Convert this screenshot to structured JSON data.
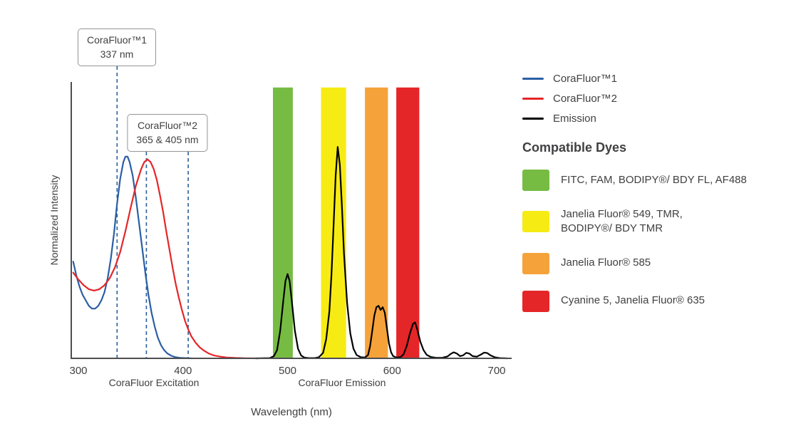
{
  "figure": {
    "xlabel": "Wavelength (nm)",
    "ylabel": "Normalized Intensity",
    "section_labels": {
      "excitation": "CoraFluor Excitation",
      "emission": "CoraFluor Emission"
    }
  },
  "callouts": [
    {
      "line1": "CoraFluor™1",
      "line2": "337 nm"
    },
    {
      "line1": "CoraFluor™2",
      "line2": "365 & 405 nm"
    }
  ],
  "legend": {
    "items": [
      {
        "label": "CoraFluor™1",
        "color": "#2b5fa5"
      },
      {
        "label": "CoraFluor™2",
        "color": "#e52628"
      },
      {
        "label": "Emission",
        "color": "#000000"
      }
    ]
  },
  "compatible_dyes": {
    "heading": "Compatible Dyes",
    "items": [
      {
        "color": "#76bc43",
        "label": "FITC, FAM, BODIPY®/ BDY FL, AF488"
      },
      {
        "color": "#f7eb14",
        "label": "Janelia Fluor® 549, TMR,\nBODIPY®/ BDY TMR"
      },
      {
        "color": "#f5a23a",
        "label": "Janelia Fluor® 585"
      },
      {
        "color": "#e52628",
        "label": "Cyanine 5, Janelia Fluor® 635"
      }
    ]
  },
  "chart_data": {
    "type": "line",
    "title": "CoraFluor excitation and emission spectra with filter bands",
    "xlabel": "Wavelength (nm)",
    "ylabel": "Normalized Intensity",
    "xlim": [
      293,
      715
    ],
    "ylim": [
      0,
      1
    ],
    "grid": false,
    "legend_position": "right",
    "x_ticks": [
      300,
      400,
      500,
      600,
      700
    ],
    "marker_color": "#2a5f9e",
    "excitation_markers_nm": [
      337,
      365,
      405
    ],
    "filter_bands": [
      {
        "name": "green",
        "color": "#76bc43",
        "range_nm": [
          486,
          505
        ],
        "dyes": "FITC, FAM, BODIPY®/ BDY FL, AF488"
      },
      {
        "name": "yellow",
        "color": "#f7eb14",
        "range_nm": [
          532,
          556
        ],
        "dyes": "Janelia Fluor® 549, TMR, BODIPY®/ BDY TMR"
      },
      {
        "name": "orange",
        "color": "#f5a23a",
        "range_nm": [
          574,
          596
        ],
        "dyes": "Janelia Fluor® 585"
      },
      {
        "name": "red",
        "color": "#e52628",
        "range_nm": [
          604,
          626
        ],
        "dyes": "Cyanine 5, Janelia Fluor® 635"
      }
    ],
    "series": [
      {
        "name": "CoraFluor™1",
        "role": "excitation-corafluor1",
        "color": "#2b5fa5",
        "points": [
          [
            295,
            0.35
          ],
          [
            298,
            0.3
          ],
          [
            301,
            0.26
          ],
          [
            304,
            0.23
          ],
          [
            307,
            0.21
          ],
          [
            310,
            0.19
          ],
          [
            313,
            0.18
          ],
          [
            316,
            0.18
          ],
          [
            319,
            0.19
          ],
          [
            322,
            0.21
          ],
          [
            325,
            0.24
          ],
          [
            328,
            0.29
          ],
          [
            331,
            0.36
          ],
          [
            334,
            0.45
          ],
          [
            337,
            0.56
          ],
          [
            340,
            0.65
          ],
          [
            343,
            0.71
          ],
          [
            345,
            0.73
          ],
          [
            347,
            0.73
          ],
          [
            349,
            0.71
          ],
          [
            352,
            0.66
          ],
          [
            355,
            0.58
          ],
          [
            358,
            0.49
          ],
          [
            361,
            0.4
          ],
          [
            364,
            0.31
          ],
          [
            367,
            0.23
          ],
          [
            370,
            0.165
          ],
          [
            373,
            0.115
          ],
          [
            376,
            0.075
          ],
          [
            379,
            0.048
          ],
          [
            382,
            0.03
          ],
          [
            385,
            0.018
          ],
          [
            389,
            0.009
          ],
          [
            393,
            0.004
          ],
          [
            397,
            0.002
          ],
          [
            402,
            0.001
          ],
          [
            408,
            0
          ]
        ]
      },
      {
        "name": "CoraFluor™2",
        "role": "excitation-corafluor2",
        "color": "#e52628",
        "points": [
          [
            295,
            0.31
          ],
          [
            300,
            0.285
          ],
          [
            305,
            0.265
          ],
          [
            310,
            0.25
          ],
          [
            315,
            0.245
          ],
          [
            320,
            0.25
          ],
          [
            325,
            0.265
          ],
          [
            330,
            0.29
          ],
          [
            335,
            0.33
          ],
          [
            340,
            0.385
          ],
          [
            345,
            0.46
          ],
          [
            350,
            0.545
          ],
          [
            355,
            0.625
          ],
          [
            360,
            0.685
          ],
          [
            363,
            0.71
          ],
          [
            366,
            0.72
          ],
          [
            369,
            0.71
          ],
          [
            372,
            0.685
          ],
          [
            375,
            0.645
          ],
          [
            378,
            0.59
          ],
          [
            381,
            0.53
          ],
          [
            384,
            0.46
          ],
          [
            387,
            0.395
          ],
          [
            390,
            0.33
          ],
          [
            393,
            0.27
          ],
          [
            396,
            0.22
          ],
          [
            399,
            0.175
          ],
          [
            402,
            0.135
          ],
          [
            405,
            0.105
          ],
          [
            408,
            0.08
          ],
          [
            412,
            0.057
          ],
          [
            416,
            0.04
          ],
          [
            420,
            0.028
          ],
          [
            425,
            0.017
          ],
          [
            430,
            0.01
          ],
          [
            436,
            0.006
          ],
          [
            442,
            0.003
          ],
          [
            450,
            0.0015
          ],
          [
            460,
            0.0005
          ],
          [
            472,
            0
          ]
        ]
      },
      {
        "name": "Emission",
        "role": "emission",
        "color": "#000000",
        "points": [
          [
            470,
            0
          ],
          [
            483,
            0.001
          ],
          [
            487,
            0.008
          ],
          [
            490,
            0.03
          ],
          [
            493,
            0.1
          ],
          [
            496,
            0.21
          ],
          [
            498,
            0.28
          ],
          [
            500,
            0.305
          ],
          [
            502,
            0.28
          ],
          [
            504,
            0.21
          ],
          [
            507,
            0.1
          ],
          [
            510,
            0.035
          ],
          [
            513,
            0.01
          ],
          [
            516,
            0.003
          ],
          [
            520,
            0.001
          ],
          [
            526,
            0.001
          ],
          [
            530,
            0.004
          ],
          [
            534,
            0.02
          ],
          [
            537,
            0.07
          ],
          [
            540,
            0.17
          ],
          [
            542,
            0.3
          ],
          [
            544,
            0.48
          ],
          [
            546,
            0.66
          ],
          [
            548,
            0.765
          ],
          [
            550,
            0.7
          ],
          [
            552,
            0.55
          ],
          [
            554,
            0.38
          ],
          [
            557,
            0.2
          ],
          [
            560,
            0.09
          ],
          [
            563,
            0.035
          ],
          [
            566,
            0.012
          ],
          [
            570,
            0.004
          ],
          [
            574,
            0.003
          ],
          [
            577,
            0.012
          ],
          [
            579,
            0.045
          ],
          [
            581,
            0.1
          ],
          [
            583,
            0.155
          ],
          [
            585,
            0.185
          ],
          [
            587,
            0.19
          ],
          [
            589,
            0.175
          ],
          [
            591,
            0.185
          ],
          [
            593,
            0.165
          ],
          [
            595,
            0.11
          ],
          [
            597,
            0.055
          ],
          [
            599,
            0.022
          ],
          [
            601,
            0.008
          ],
          [
            604,
            0.003
          ],
          [
            608,
            0.004
          ],
          [
            611,
            0.015
          ],
          [
            614,
            0.045
          ],
          [
            617,
            0.09
          ],
          [
            620,
            0.125
          ],
          [
            622,
            0.13
          ],
          [
            624,
            0.105
          ],
          [
            627,
            0.06
          ],
          [
            630,
            0.03
          ],
          [
            633,
            0.013
          ],
          [
            637,
            0.005
          ],
          [
            642,
            0.002
          ],
          [
            648,
            0.002
          ],
          [
            653,
            0.007
          ],
          [
            656,
            0.016
          ],
          [
            659,
            0.022
          ],
          [
            662,
            0.017
          ],
          [
            665,
            0.008
          ],
          [
            668,
            0.011
          ],
          [
            671,
            0.02
          ],
          [
            674,
            0.017
          ],
          [
            677,
            0.008
          ],
          [
            681,
            0.006
          ],
          [
            685,
            0.014
          ],
          [
            688,
            0.021
          ],
          [
            691,
            0.019
          ],
          [
            694,
            0.011
          ],
          [
            698,
            0.004
          ],
          [
            703,
            0.001
          ],
          [
            710,
            0
          ]
        ]
      }
    ]
  }
}
